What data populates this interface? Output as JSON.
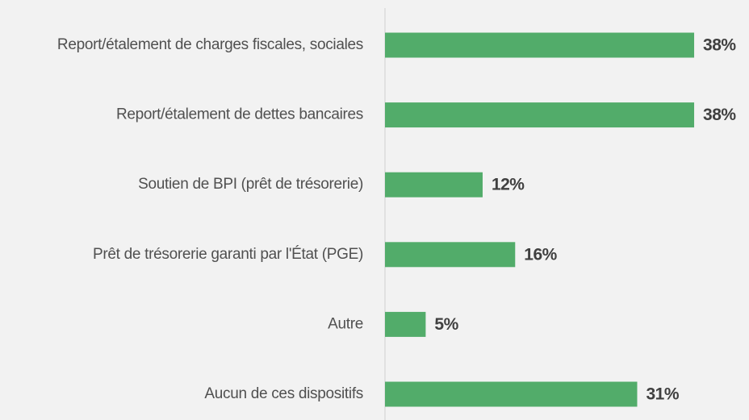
{
  "chart_data": {
    "type": "bar",
    "orientation": "horizontal",
    "categories": [
      "Report/étalement de charges fiscales, sociales",
      "Report/étalement de dettes bancaires",
      "Soutien de BPI (prêt de trésorerie)",
      "Prêt de trésorerie garanti par l'État (PGE)",
      "Autre",
      "Aucun de ces dispositifs"
    ],
    "values": [
      38,
      38,
      12,
      16,
      5,
      31
    ],
    "value_labels": [
      "38%",
      "38%",
      "12%",
      "16%",
      "5%",
      "31%"
    ],
    "color": "#52ac6a"
  }
}
